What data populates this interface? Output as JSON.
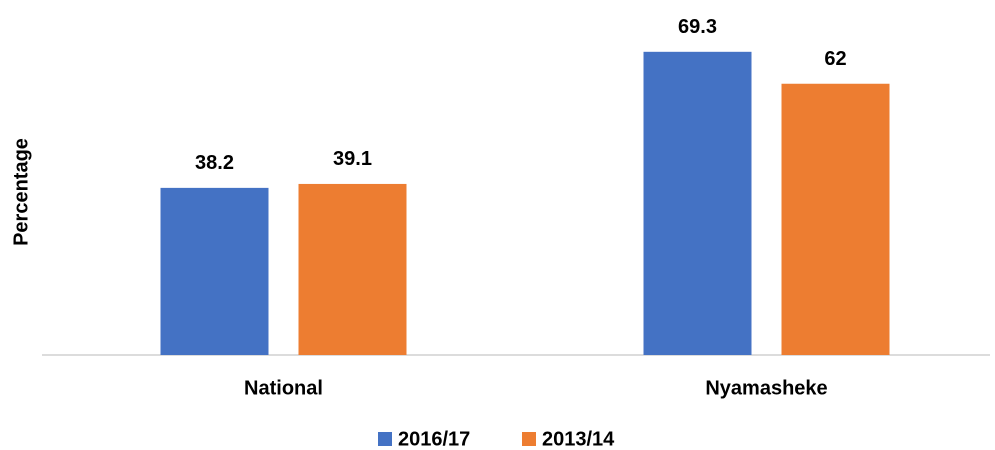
{
  "chart_data": {
    "type": "bar",
    "y_label": "Percentage",
    "categories": [
      "National",
      "Nyamasheke"
    ],
    "series": [
      {
        "name": "2016/17",
        "color": "#4472c4",
        "values": [
          38.2,
          69.3
        ]
      },
      {
        "name": "2013/14",
        "color": "#ed7d31",
        "values": [
          39.1,
          62
        ]
      }
    ],
    "ylim": [
      0,
      80
    ],
    "legend": "bottom"
  }
}
